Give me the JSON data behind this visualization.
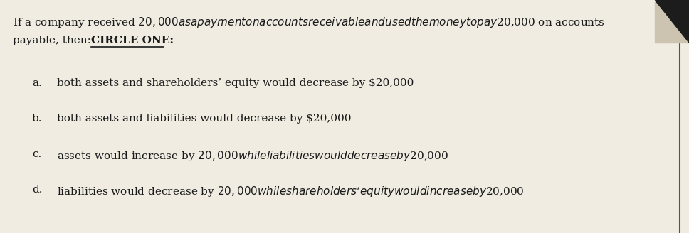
{
  "bg_color": "#f0ece2",
  "text_color": "#1a1a1a",
  "header_line1": "If a company received $20,000 as a payment on accounts receivable and used the money to pay $20,000 on accounts",
  "header_line2_normal": "payable, then: ",
  "header_line2_bold": "CIRCLE ONE:",
  "options": [
    {
      "letter": "a.",
      "text": "both assets and shareholders’ equity would decrease by $20,000"
    },
    {
      "letter": "b.",
      "text": "both assets and liabilities would decrease by $20,000"
    },
    {
      "letter": "c.",
      "text": "assets would increase by $20,000 while liabilities would decrease by $20,000"
    },
    {
      "letter": "d.",
      "text": "liabilities would decrease by $20,000 while shareholders’ equity would increase by $20,000"
    }
  ],
  "header_fontsize": 11.0,
  "option_fontsize": 11.0,
  "figsize": [
    9.68,
    3.28
  ],
  "dpi": 100,
  "fold_color_dark": "#1c1c1c",
  "fold_color_light": "#ccc4b0",
  "right_line_color": "#555555"
}
